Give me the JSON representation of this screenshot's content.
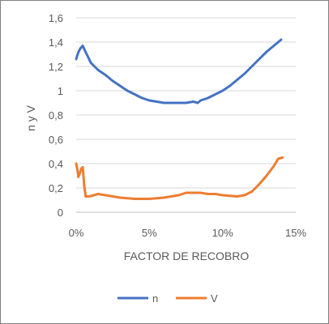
{
  "chart_data": {
    "type": "line",
    "title": "",
    "xlabel": "FACTOR DE RECOBRO",
    "ylabel": "n y V",
    "xlim": [
      0,
      0.15
    ],
    "ylim": [
      0,
      1.6
    ],
    "x_ticks": [
      0,
      0.05,
      0.1,
      0.15
    ],
    "x_tick_labels": [
      "0%",
      "5%",
      "10%",
      "15%"
    ],
    "y_ticks": [
      0,
      0.2,
      0.4,
      0.6,
      0.8,
      1.0,
      1.2,
      1.4,
      1.6
    ],
    "y_tick_labels": [
      "0",
      "0,2",
      "0,4",
      "0,6",
      "0,8",
      "1",
      "1,2",
      "1,4",
      "1,6"
    ],
    "grid": "horizontal",
    "legend_position": "bottom",
    "series": [
      {
        "name": "n",
        "color": "#4472C4",
        "points": [
          [
            0.0,
            1.26
          ],
          [
            0.001,
            1.3
          ],
          [
            0.002,
            1.33
          ],
          [
            0.003,
            1.35
          ],
          [
            0.0045,
            1.37
          ],
          [
            0.006,
            1.33
          ],
          [
            0.008,
            1.28
          ],
          [
            0.01,
            1.23
          ],
          [
            0.015,
            1.17
          ],
          [
            0.02,
            1.13
          ],
          [
            0.025,
            1.08
          ],
          [
            0.03,
            1.04
          ],
          [
            0.035,
            1.0
          ],
          [
            0.04,
            0.97
          ],
          [
            0.045,
            0.94
          ],
          [
            0.05,
            0.92
          ],
          [
            0.055,
            0.91
          ],
          [
            0.06,
            0.9
          ],
          [
            0.065,
            0.9
          ],
          [
            0.07,
            0.9
          ],
          [
            0.075,
            0.9
          ],
          [
            0.08,
            0.91
          ],
          [
            0.083,
            0.9
          ],
          [
            0.085,
            0.92
          ],
          [
            0.09,
            0.94
          ],
          [
            0.095,
            0.97
          ],
          [
            0.1,
            1.0
          ],
          [
            0.105,
            1.04
          ],
          [
            0.11,
            1.09
          ],
          [
            0.115,
            1.14
          ],
          [
            0.12,
            1.2
          ],
          [
            0.125,
            1.26
          ],
          [
            0.13,
            1.32
          ],
          [
            0.135,
            1.37
          ],
          [
            0.14,
            1.42
          ]
        ]
      },
      {
        "name": "V",
        "color": "#ED7D31",
        "points": [
          [
            0.0,
            0.4
          ],
          [
            0.001,
            0.34
          ],
          [
            0.0015,
            0.29
          ],
          [
            0.0025,
            0.32
          ],
          [
            0.0035,
            0.36
          ],
          [
            0.0045,
            0.37
          ],
          [
            0.0055,
            0.22
          ],
          [
            0.0065,
            0.13
          ],
          [
            0.009,
            0.13
          ],
          [
            0.012,
            0.14
          ],
          [
            0.015,
            0.15
          ],
          [
            0.02,
            0.14
          ],
          [
            0.025,
            0.13
          ],
          [
            0.03,
            0.12
          ],
          [
            0.04,
            0.11
          ],
          [
            0.05,
            0.11
          ],
          [
            0.06,
            0.12
          ],
          [
            0.07,
            0.14
          ],
          [
            0.075,
            0.16
          ],
          [
            0.08,
            0.16
          ],
          [
            0.085,
            0.16
          ],
          [
            0.09,
            0.15
          ],
          [
            0.095,
            0.15
          ],
          [
            0.1,
            0.14
          ],
          [
            0.11,
            0.13
          ],
          [
            0.115,
            0.14
          ],
          [
            0.12,
            0.17
          ],
          [
            0.125,
            0.23
          ],
          [
            0.13,
            0.3
          ],
          [
            0.135,
            0.38
          ],
          [
            0.138,
            0.44
          ],
          [
            0.141,
            0.45
          ]
        ]
      }
    ]
  }
}
